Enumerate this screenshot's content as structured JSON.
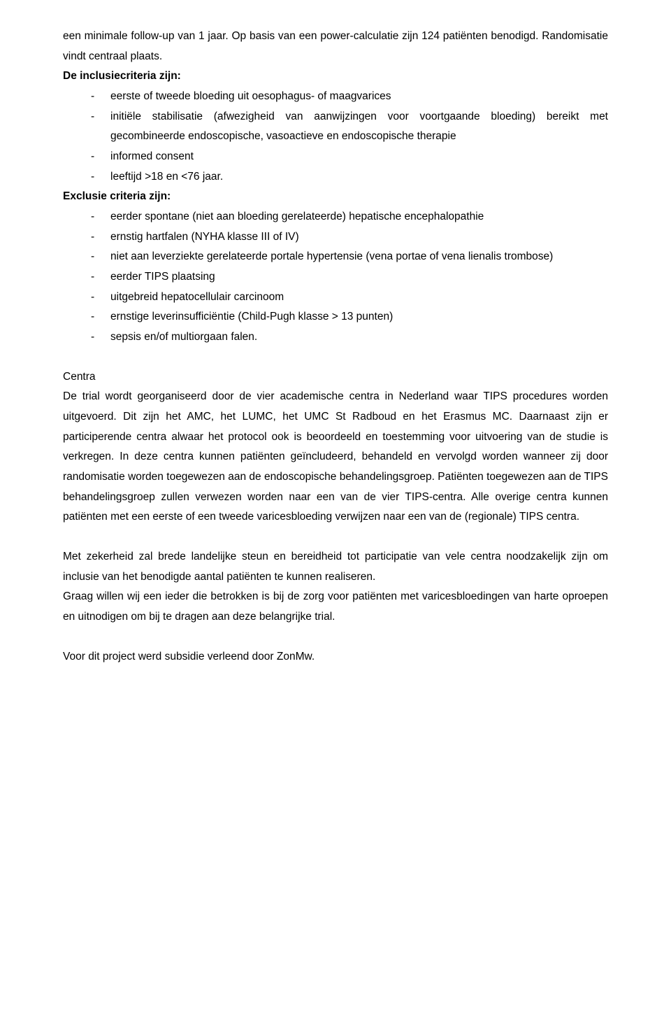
{
  "intro": "een minimale follow-up van 1 jaar. Op basis van een power-calculatie zijn 124 patiënten benodigd. Randomisatie vindt centraal plaats.",
  "inclusie": {
    "heading": "De inclusiecriteria zijn:",
    "items": [
      "eerste of tweede bloeding uit oesophagus- of maagvarices",
      "initiële stabilisatie (afwezigheid van aanwijzingen voor voortgaande bloeding) bereikt met gecombineerde endoscopische, vasoactieve en endoscopische therapie",
      "informed consent",
      "leeftijd >18 en <76 jaar."
    ]
  },
  "exclusie": {
    "heading": "Exclusie criteria zijn:",
    "items": [
      "eerder spontane (niet aan bloeding gerelateerde) hepatische encephalopathie",
      "ernstig hartfalen (NYHA klasse III of IV)",
      "niet aan leverziekte gerelateerde portale hypertensie (vena portae of vena lienalis trombose)",
      "eerder TIPS plaatsing",
      "uitgebreid hepatocellulair carcinoom",
      "ernstige leverinsufficiëntie (Child-Pugh klasse > 13 punten)",
      "sepsis en/of multiorgaan falen."
    ]
  },
  "centra": {
    "heading": "Centra",
    "body": "De trial wordt georganiseerd door de vier academische centra in Nederland waar TIPS procedures worden uitgevoerd. Dit zijn het AMC, het LUMC, het UMC St Radboud en het Erasmus MC. Daarnaast zijn er participerende centra alwaar het protocol ook is beoordeeld en toestemming voor uitvoering van de studie is verkregen. In deze centra kunnen patiënten geïncludeerd, behandeld en vervolgd worden wanneer zij door randomisatie worden toegewezen aan de endoscopische behandelingsgroep. Patiënten toegewezen aan de TIPS behandelingsgroep zullen verwezen worden naar een van de vier TIPS-centra. Alle overige centra kunnen patiënten met een eerste of een tweede varicesbloeding verwijzen naar een van de (regionale) TIPS centra."
  },
  "closing": {
    "p1": "Met zekerheid zal brede landelijke steun en bereidheid tot participatie van vele centra noodzakelijk zijn om inclusie van het benodigde aantal patiënten te kunnen realiseren.",
    "p2": "Graag willen wij een ieder die betrokken is bij de zorg voor patiënten met varicesbloedingen van harte oproepen en uitnodigen om bij te dragen aan deze belangrijke trial."
  },
  "footer": "Voor dit project werd subsidie verleend door ZonMw."
}
